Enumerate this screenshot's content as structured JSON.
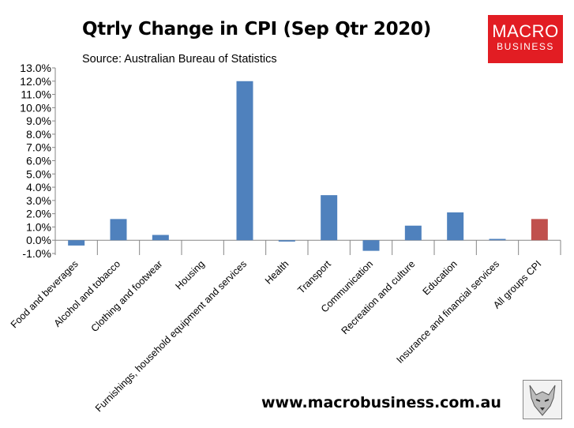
{
  "title": "Qtrly Change in CPI (Sep Qtr 2020)",
  "source": "Source: Australian Bureau of Statistics",
  "logo": {
    "line1": "MACRO",
    "line2": "BUSINESS"
  },
  "footer": {
    "url": "www.macrobusiness.com.au"
  },
  "colors": {
    "bar": "#4f81bd",
    "highlight": "#c0504d",
    "logo": "#e21d23"
  },
  "chart_data": {
    "type": "bar",
    "title": "Qtrly Change in CPI (Sep Qtr 2020)",
    "xlabel": "",
    "ylabel": "",
    "ylim": [
      -1.0,
      13.0
    ],
    "ytick_step": 1.0,
    "ytick_labels": [
      "-1.0%",
      "0.0%",
      "1.0%",
      "2.0%",
      "3.0%",
      "4.0%",
      "5.0%",
      "6.0%",
      "7.0%",
      "8.0%",
      "9.0%",
      "10.0%",
      "11.0%",
      "12.0%",
      "13.0%"
    ],
    "grid": false,
    "categories": [
      "Food and beverages",
      "Alcohol and tobacco",
      "Clothing and footwear",
      "Housing",
      "Furnishings, household equipment and services",
      "Health",
      "Transport",
      "Communication",
      "Recreation and culture",
      "Education",
      "Insurance and financial services",
      "All groups CPI"
    ],
    "values": [
      -0.4,
      1.6,
      0.4,
      0.0,
      12.0,
      -0.1,
      3.4,
      -0.8,
      1.1,
      2.1,
      0.1,
      1.6
    ],
    "highlight_index": 11
  }
}
